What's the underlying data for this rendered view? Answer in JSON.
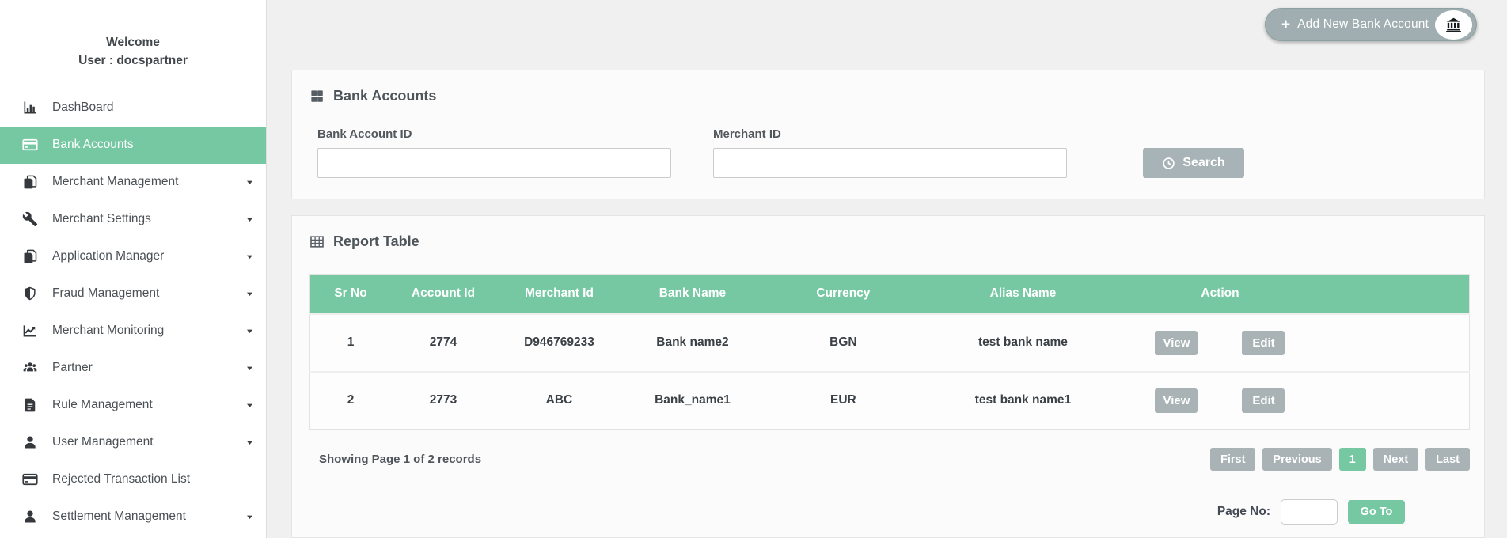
{
  "sidebar": {
    "welcome_line1": "Welcome",
    "welcome_line2": "User : docspartner",
    "items": [
      {
        "label": "DashBoard",
        "icon": "bar-chart",
        "active": false,
        "expandable": false
      },
      {
        "label": "Bank Accounts",
        "icon": "credit-card",
        "active": true,
        "expandable": false
      },
      {
        "label": "Merchant Management",
        "icon": "copy",
        "active": false,
        "expandable": true
      },
      {
        "label": "Merchant Settings",
        "icon": "wrench",
        "active": false,
        "expandable": true
      },
      {
        "label": "Application Manager",
        "icon": "copy",
        "active": false,
        "expandable": true
      },
      {
        "label": "Fraud Management",
        "icon": "shield",
        "active": false,
        "expandable": true
      },
      {
        "label": "Merchant Monitoring",
        "icon": "line-chart",
        "active": false,
        "expandable": true
      },
      {
        "label": "Partner",
        "icon": "users",
        "active": false,
        "expandable": true
      },
      {
        "label": "Rule Management",
        "icon": "file",
        "active": false,
        "expandable": true
      },
      {
        "label": "User Management",
        "icon": "user",
        "active": false,
        "expandable": true
      },
      {
        "label": "Rejected Transaction List",
        "icon": "credit-card",
        "active": false,
        "expandable": false
      },
      {
        "label": "Settlement Management",
        "icon": "user",
        "active": false,
        "expandable": true
      }
    ]
  },
  "header": {
    "add_button": {
      "plus": "+",
      "label": "Add New Bank Account",
      "icon": "bank"
    }
  },
  "search_panel": {
    "title": "Bank Accounts",
    "title_icon": "grid",
    "fields": [
      {
        "label": "Bank Account ID",
        "value": "",
        "placeholder": ""
      },
      {
        "label": "Merchant ID",
        "value": "",
        "placeholder": ""
      }
    ],
    "search_button": "Search",
    "search_icon": "clock"
  },
  "report_panel": {
    "title": "Report Table",
    "title_icon": "table",
    "table": {
      "columns": [
        "Sr No",
        "Account Id",
        "Merchant Id",
        "Bank Name",
        "Currency",
        "Alias Name",
        "Action"
      ],
      "rows": [
        {
          "cells": [
            "1",
            "2774",
            "D946769233",
            "Bank name2",
            "BGN",
            "test bank name"
          ],
          "actions": [
            "View",
            "Edit"
          ]
        },
        {
          "cells": [
            "2",
            "2773",
            "ABC",
            "Bank_name1",
            "EUR",
            "test bank name1"
          ],
          "actions": [
            "View",
            "Edit"
          ]
        }
      ]
    },
    "footer": {
      "summary": "Showing Page 1 of 2 records",
      "pagination": [
        {
          "label": "First",
          "active": false
        },
        {
          "label": "Previous",
          "active": false
        },
        {
          "label": "1",
          "active": true
        },
        {
          "label": "Next",
          "active": false
        },
        {
          "label": "Last",
          "active": false
        }
      ],
      "page_no_label": "Page No:",
      "page_no_value": "",
      "goto_button": "Go To"
    }
  },
  "colors": {
    "accent_green": "#76c8a3",
    "button_gray": "#a9b3b6",
    "page_background": "#f0f0f0",
    "panel_background": "#fbfbfb"
  }
}
